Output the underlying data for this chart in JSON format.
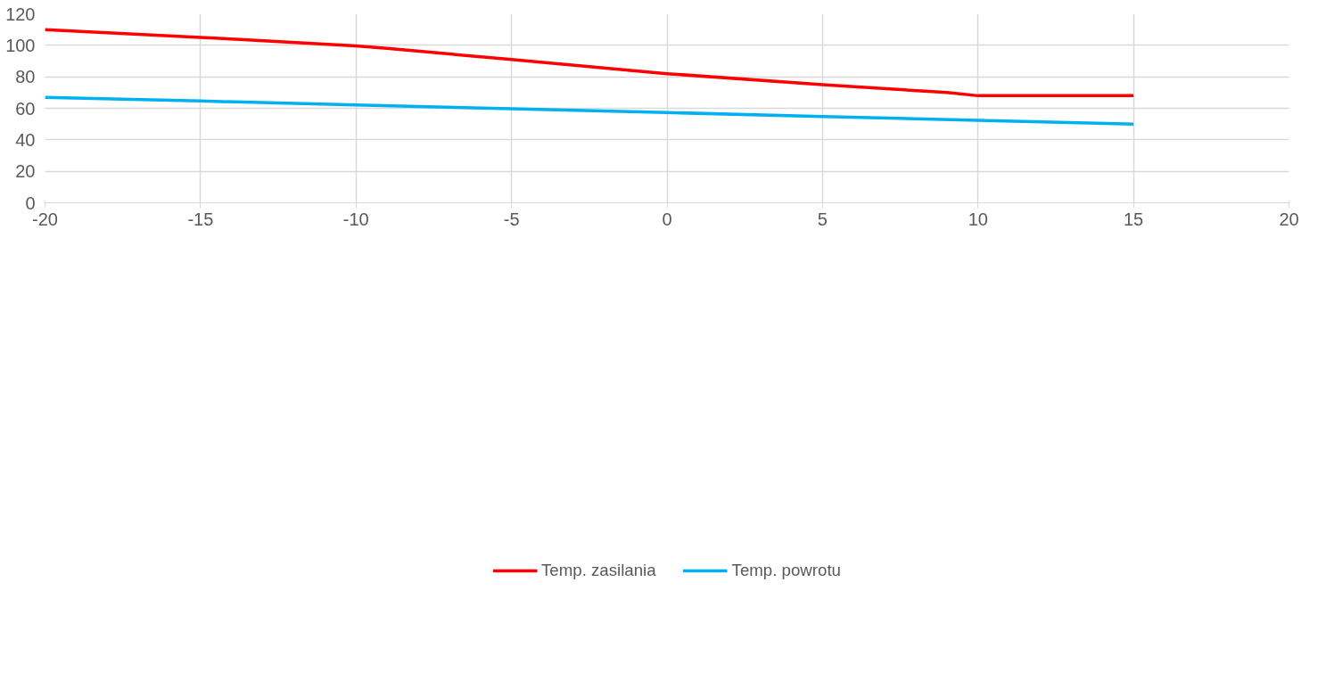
{
  "chart_data": {
    "type": "line",
    "xlim": [
      -20,
      20
    ],
    "xticks": [
      -20,
      -15,
      -10,
      -5,
      0,
      5,
      10,
      15,
      20
    ],
    "ylim": [
      0,
      120
    ],
    "yticks": [
      0,
      20,
      40,
      60,
      80,
      100,
      120
    ],
    "grid": true,
    "legend": "bottom",
    "marker": "none",
    "line_style": "solid",
    "series": [
      {
        "name": "Temp. zasilania",
        "color": "#ff0000",
        "x": [
          -20,
          -15,
          -14,
          -10,
          -9,
          -5,
          0,
          5,
          9,
          10,
          10.5,
          15
        ],
        "values": [
          110,
          105,
          104,
          99.6,
          98,
          91,
          82,
          75,
          70,
          68,
          68,
          68
        ]
      },
      {
        "name": "Temp. powrotu",
        "color": "#00b0f0",
        "x": [
          -20,
          -15,
          -10,
          -5,
          0,
          5,
          10,
          15
        ],
        "values": [
          67,
          64.6,
          62.1,
          59.7,
          57.3,
          54.8,
          52.4,
          50
        ]
      }
    ]
  }
}
